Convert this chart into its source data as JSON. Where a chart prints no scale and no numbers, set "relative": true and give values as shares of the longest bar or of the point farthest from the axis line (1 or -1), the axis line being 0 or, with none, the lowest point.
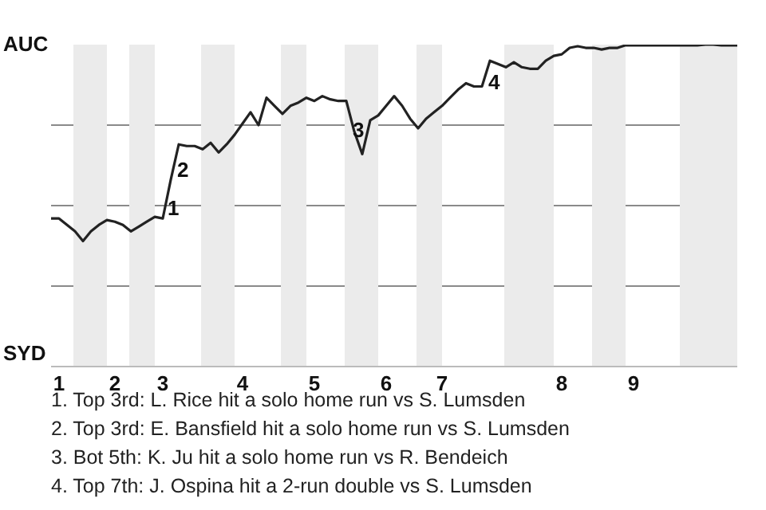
{
  "chart_data": {
    "type": "line",
    "relative": true,
    "categories": [
      null,
      "1",
      null,
      null,
      null,
      null,
      null,
      null,
      "2",
      null,
      null,
      null,
      null,
      null,
      "3",
      null,
      null,
      null,
      null,
      null,
      null,
      null,
      null,
      null,
      "4",
      null,
      null,
      null,
      null,
      null,
      null,
      null,
      null,
      "5",
      null,
      null,
      null,
      null,
      null,
      null,
      null,
      null,
      "6",
      null,
      null,
      null,
      null,
      null,
      null,
      "7",
      null,
      null,
      null,
      null,
      null,
      null,
      null,
      null,
      null,
      null,
      null,
      null,
      null,
      null,
      "8",
      null,
      null,
      null,
      null,
      null,
      null,
      null,
      null,
      "9",
      null,
      null,
      null,
      null,
      null,
      null,
      null,
      null,
      null,
      null,
      null,
      null,
      null
    ],
    "series": [
      {
        "color": "#222222",
        "values": [
          0.46,
          0.46,
          0.44,
          0.42,
          0.39,
          0.42,
          0.44,
          0.455,
          0.45,
          0.44,
          0.42,
          0.435,
          0.45,
          0.465,
          0.46,
          0.58,
          0.69,
          0.685,
          0.685,
          0.675,
          0.695,
          0.665,
          0.69,
          0.72,
          0.755,
          0.79,
          0.75,
          0.835,
          0.81,
          0.785,
          0.81,
          0.82,
          0.835,
          0.825,
          0.84,
          0.83,
          0.825,
          0.825,
          0.73,
          0.66,
          0.765,
          0.78,
          0.81,
          0.84,
          0.81,
          0.77,
          0.74,
          0.77,
          0.79,
          0.81,
          0.835,
          0.86,
          0.88,
          0.87,
          0.87,
          0.95,
          0.94,
          0.93,
          0.945,
          0.93,
          0.925,
          0.925,
          0.95,
          0.965,
          0.97,
          0.99,
          0.995,
          0.99,
          0.99,
          0.985,
          0.99,
          0.99,
          0.998,
          0.998,
          0.998,
          0.998,
          0.998,
          0.998,
          0.998,
          0.998,
          0.998,
          0.998,
          1.0,
          1.0,
          0.998,
          0.998,
          0.998
        ]
      }
    ],
    "grid": "y",
    "marker": "none",
    "annotations": [
      "AUC",
      "SYD",
      "1",
      "2",
      "3",
      "4",
      "1. Top 3rd: L. Rice hit a solo home run vs S. Lumsden",
      "2. Top 3rd: E. Bansfield hit a solo home run vs S. Lumsden",
      "3. Bot 5th: K. Ju hit a solo home run vs R. Bendeich",
      "4. Top 7th: J. Ospina hit a 2-run double vs S. Lumsden"
    ]
  }
}
